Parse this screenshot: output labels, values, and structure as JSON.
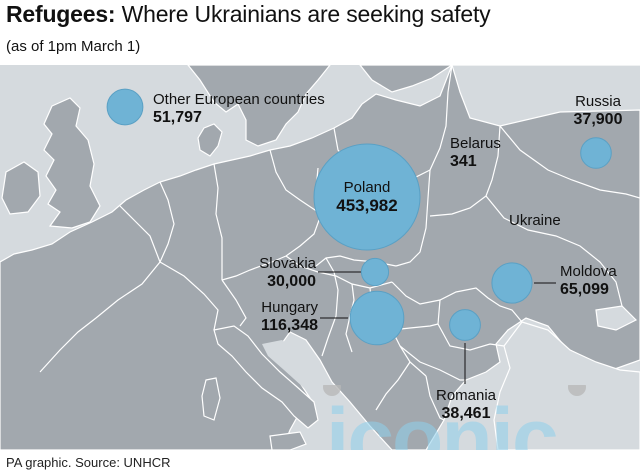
{
  "header": {
    "title_bold": "Refugees:",
    "title_rest": "Where Ukrainians are seeking safety",
    "subtitle": "(as of 1pm March 1)"
  },
  "map": {
    "countries": [
      {
        "id": "other",
        "name": "Other European countries",
        "value": "51,797",
        "value_num": 51797
      },
      {
        "id": "russia",
        "name": "Russia",
        "value": "37,900",
        "value_num": 37900
      },
      {
        "id": "belarus",
        "name": "Belarus",
        "value": "341",
        "value_num": 341
      },
      {
        "id": "poland",
        "name": "Poland",
        "value": "453,982",
        "value_num": 453982
      },
      {
        "id": "slovakia",
        "name": "Slovakia",
        "value": "30,000",
        "value_num": 30000
      },
      {
        "id": "hungary",
        "name": "Hungary",
        "value": "116,348",
        "value_num": 116348
      },
      {
        "id": "moldova",
        "name": "Moldova",
        "value": "65,099",
        "value_num": 65099
      },
      {
        "id": "romania",
        "name": "Romania",
        "value": "38,461",
        "value_num": 38461
      }
    ],
    "ukraine_label": "Ukraine"
  },
  "colors": {
    "sea": "#d5dade",
    "land": "#a2a8ae",
    "border": "#ffffff",
    "bubble": "#6fb3d5",
    "bubble_edge": "#5aa0c4"
  },
  "footer": {
    "source": "PA graphic. Source: UNHCR"
  },
  "watermark": {
    "text": "iconic"
  }
}
